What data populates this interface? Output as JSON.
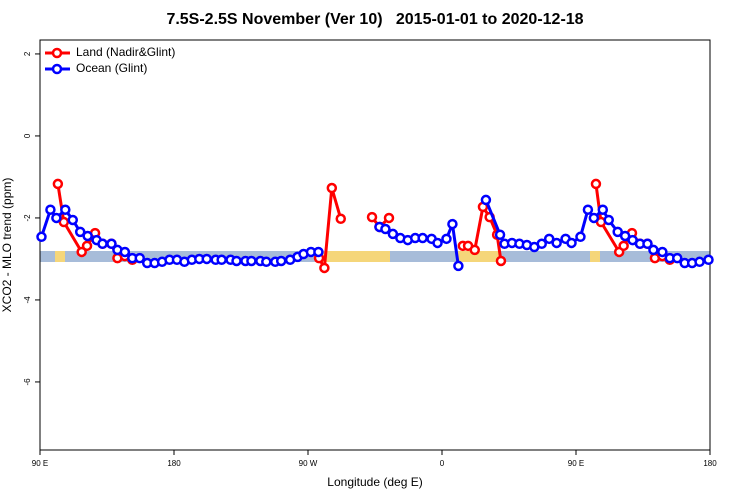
{
  "chart_data": {
    "type": "line",
    "title": "7.5S-2.5S November (Ver 10)   2015-01-01 to 2020-12-18",
    "x_label": "Longitude (deg E)",
    "y_label": "XCO2 - MLO trend (ppm)",
    "xlim": [
      90,
      540
    ],
    "ylim": [
      -7.66,
      2.34
    ],
    "xticks": [
      {
        "value": 90,
        "label": "90 E"
      },
      180,
      {
        "value": 270,
        "label": "90 W"
      },
      {
        "value": 360,
        "label": "0"
      },
      {
        "value": 450,
        "label": "90 E"
      },
      {
        "value": 540,
        "label": "180"
      }
    ],
    "yticks": [
      2,
      0,
      -2,
      -4,
      -6
    ],
    "legend": "top-left",
    "series": [
      {
        "name": "Land (Nadir&Glint)",
        "color": "#ff0000",
        "x": [
          102,
          106,
          118,
          121.6,
          127,
          132,
          138,
          142,
          147,
          152,
          null,
          277.4,
          281,
          286,
          292,
          null,
          313,
          318,
          324.4,
          null,
          374,
          377.5,
          382,
          387.5,
          392,
          397,
          399.6,
          null,
          463.4,
          466.8,
          479,
          482,
          487.6,
          493,
          498,
          503,
          508,
          513
        ],
        "values": [
          -1.17,
          -2.1,
          -2.83,
          -2.68,
          -2.37,
          -2.63,
          -2.63,
          -2.98,
          -2.93,
          -3.02,
          null,
          -2.98,
          -3.22,
          -1.27,
          -2.02,
          null,
          -1.98,
          -2.22,
          -2.0,
          null,
          -2.68,
          -2.68,
          -2.78,
          -1.73,
          -1.98,
          -2.41,
          -3.05,
          null,
          -1.17,
          -2.1,
          -2.83,
          -2.68,
          -2.37,
          -2.63,
          -2.63,
          -2.98,
          -2.93,
          -3.02
        ]
      },
      {
        "name": "Ocean (Glint)",
        "color": "#0000ff",
        "x": [
          91,
          97,
          101,
          107,
          112,
          117,
          122,
          128,
          132,
          138,
          142,
          147,
          152,
          157,
          162,
          167,
          172,
          177,
          182,
          187,
          192,
          197,
          202,
          208,
          212,
          218,
          222,
          228,
          232,
          238,
          242,
          248,
          252,
          258,
          263,
          267,
          272,
          277,
          null,
          318,
          322,
          327,
          332,
          337,
          342,
          347,
          353,
          357,
          363,
          367,
          371,
          null,
          389.5,
          399,
          402,
          407,
          412,
          417,
          422,
          427,
          432,
          437,
          443,
          447,
          453,
          458,
          462,
          468,
          472,
          478,
          483,
          488,
          493,
          498,
          502,
          508,
          513,
          518,
          523,
          528,
          533,
          539
        ],
        "values": [
          -2.46,
          -1.8,
          -2.0,
          -1.8,
          -2.05,
          -2.34,
          -2.44,
          -2.54,
          -2.63,
          -2.63,
          -2.78,
          -2.83,
          -2.98,
          -2.98,
          -3.1,
          -3.1,
          -3.07,
          -3.02,
          -3.02,
          -3.07,
          -3.02,
          -3.0,
          -3.0,
          -3.02,
          -3.02,
          -3.02,
          -3.05,
          -3.05,
          -3.05,
          -3.05,
          -3.07,
          -3.07,
          -3.05,
          -3.02,
          -2.95,
          -2.88,
          -2.83,
          -2.83,
          null,
          -2.22,
          -2.27,
          -2.39,
          -2.49,
          -2.54,
          -2.49,
          -2.49,
          -2.51,
          -2.61,
          -2.51,
          -2.15,
          -3.17,
          null,
          -1.56,
          -2.41,
          -2.63,
          -2.61,
          -2.63,
          -2.66,
          -2.71,
          -2.63,
          -2.51,
          -2.61,
          -2.51,
          -2.61,
          -2.46,
          -1.8,
          -2.0,
          -1.8,
          -2.05,
          -2.34,
          -2.44,
          -2.54,
          -2.63,
          -2.63,
          -2.78,
          -2.83,
          -2.98,
          -2.98,
          -3.1,
          -3.1,
          -3.07,
          -3.02
        ]
      }
    ]
  }
}
